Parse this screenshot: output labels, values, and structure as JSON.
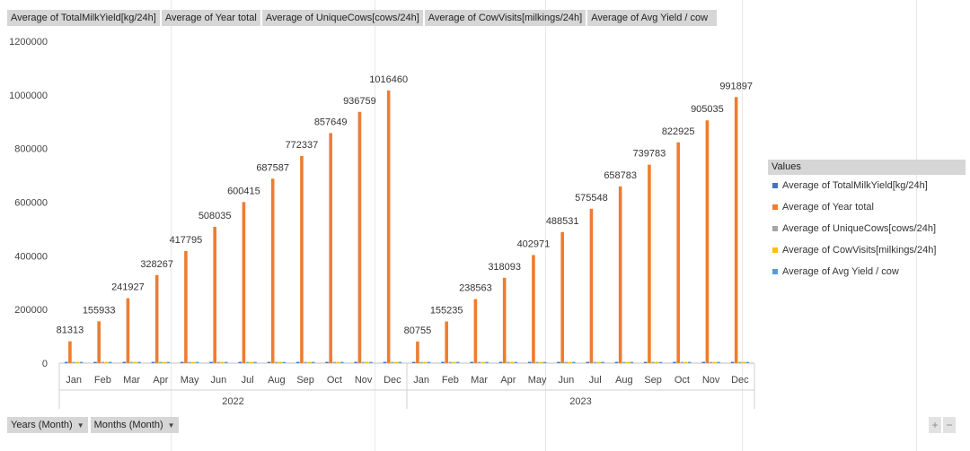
{
  "field_buttons": [
    "Average of TotalMilkYield[kg/24h]",
    "Average of Year total",
    "Average of UniqueCows[cows/24h]",
    "Average of CowVisits[milkings/24h]",
    "Average of Avg Yield / cow"
  ],
  "legend": {
    "title": "Values",
    "items": [
      {
        "label": "Average of TotalMilkYield[kg/24h]",
        "color": "#4472c4"
      },
      {
        "label": "Average of Year total",
        "color": "#ed7d31"
      },
      {
        "label": "Average of UniqueCows[cows/24h]",
        "color": "#a5a5a5"
      },
      {
        "label": "Average of CowVisits[milkings/24h]",
        "color": "#ffc000"
      },
      {
        "label": "Average of Avg Yield / cow",
        "color": "#5b9bd5"
      }
    ]
  },
  "filters": {
    "years_label": "Years (Month)",
    "months_label": "Months (Month)"
  },
  "zoom": {
    "plus": "+",
    "minus": "−"
  },
  "chart_data": {
    "type": "bar",
    "ylim": [
      0,
      1200000
    ],
    "yticks": [
      0,
      200000,
      400000,
      600000,
      800000,
      1000000,
      1200000
    ],
    "grid": false,
    "legend_position": "right",
    "groups": [
      {
        "label": "2022",
        "categories": [
          "Jan",
          "Feb",
          "Mar",
          "Apr",
          "May",
          "Jun",
          "Jul",
          "Aug",
          "Sep",
          "Oct",
          "Nov",
          "Dec"
        ]
      },
      {
        "label": "2023",
        "categories": [
          "Jan",
          "Feb",
          "Mar",
          "Apr",
          "May",
          "Jun",
          "Jul",
          "Aug",
          "Sep",
          "Oct",
          "Nov",
          "Dec"
        ]
      }
    ],
    "series": [
      {
        "name": "Average of TotalMilkYield[kg/24h]",
        "color": "#4472c4",
        "values": [
          2600,
          2700,
          2700,
          2800,
          2800,
          2800,
          2800,
          2800,
          2800,
          2800,
          2700,
          2600,
          2600,
          2700,
          2700,
          2800,
          2800,
          2800,
          2800,
          2700,
          2700,
          2700,
          2700,
          2800
        ]
      },
      {
        "name": "Average of Year total",
        "color": "#ed7d31",
        "values": [
          81313,
          155933,
          241927,
          328267,
          417795,
          508035,
          600415,
          687587,
          772337,
          857649,
          936759,
          1016460,
          80755,
          155235,
          238563,
          318093,
          402971,
          488531,
          575548,
          658783,
          739783,
          822925,
          905035,
          991897
        ],
        "labels": [
          "81313",
          "155933",
          "241927",
          "328267",
          "417795",
          "508035",
          "600415",
          "687587",
          "772337",
          "857649",
          "936759",
          "1016460",
          "80755",
          "155235",
          "238563",
          "318093",
          "402971",
          "488531",
          "575548",
          "658783",
          "739783",
          "822925",
          "905035",
          "991897"
        ]
      },
      {
        "name": "Average of UniqueCows[cows/24h]",
        "color": "#a5a5a5",
        "values": [
          80,
          80,
          80,
          80,
          80,
          80,
          80,
          80,
          80,
          80,
          80,
          80,
          80,
          80,
          80,
          80,
          80,
          80,
          80,
          80,
          80,
          80,
          80,
          80
        ]
      },
      {
        "name": "Average of CowVisits[milkings/24h]",
        "color": "#ffc000",
        "values": [
          200,
          200,
          200,
          200,
          200,
          200,
          200,
          200,
          200,
          200,
          200,
          200,
          200,
          200,
          200,
          200,
          200,
          200,
          200,
          200,
          200,
          200,
          200,
          200
        ]
      },
      {
        "name": "Average of Avg Yield / cow",
        "color": "#5b9bd5",
        "values": [
          35,
          35,
          35,
          35,
          35,
          35,
          35,
          35,
          35,
          35,
          35,
          35,
          35,
          35,
          35,
          35,
          35,
          35,
          35,
          35,
          35,
          35,
          35,
          35
        ]
      }
    ]
  }
}
